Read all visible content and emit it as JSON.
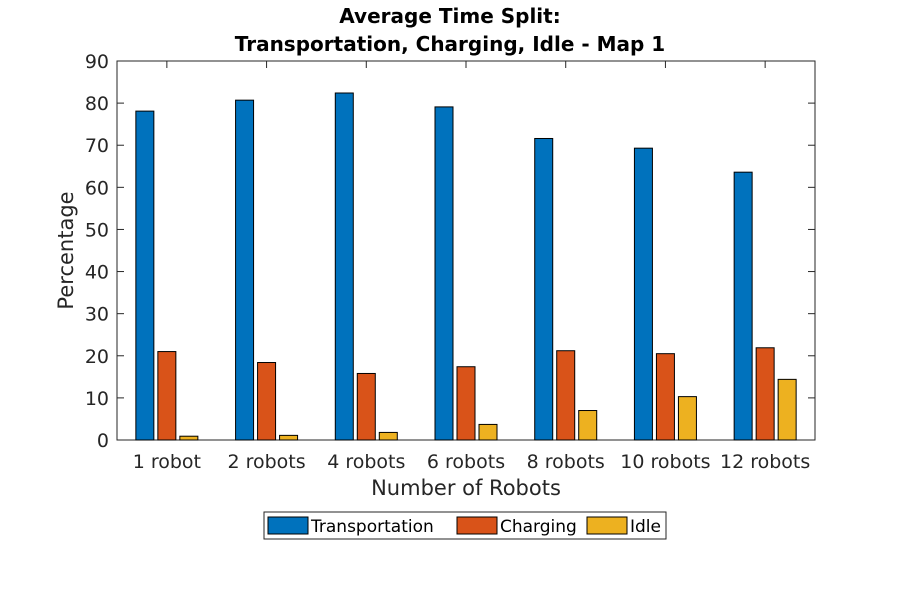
{
  "chart_data": {
    "type": "bar",
    "title": [
      "Average Time Split:",
      "Transportation, Charging, Idle - Map 1"
    ],
    "xlabel": "Number of Robots",
    "ylabel": "Percentage",
    "categories": [
      "1 robot",
      "2 robots",
      "4 robots",
      "6 robots",
      "8 robots",
      "10 robots",
      "12 robots"
    ],
    "ylim": [
      0,
      90
    ],
    "yticks": [
      0,
      10,
      20,
      30,
      40,
      50,
      60,
      70,
      80,
      90
    ],
    "grid": false,
    "legend_position": "bottom-center",
    "series": [
      {
        "name": "Transportation",
        "color": "#0072BD",
        "values": [
          78.1,
          80.7,
          82.4,
          79.1,
          71.6,
          69.3,
          63.6
        ]
      },
      {
        "name": "Charging",
        "color": "#D95319",
        "values": [
          21.0,
          18.4,
          15.8,
          17.4,
          21.2,
          20.5,
          21.9
        ]
      },
      {
        "name": "Idle",
        "color": "#EDB120",
        "values": [
          0.9,
          1.1,
          1.8,
          3.7,
          7.0,
          10.3,
          14.4
        ]
      }
    ]
  }
}
